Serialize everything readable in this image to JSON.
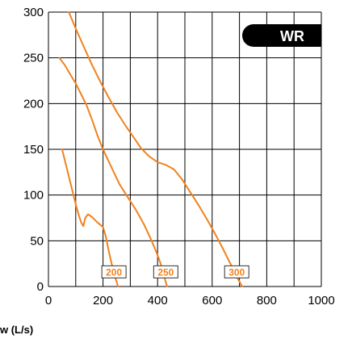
{
  "chart_data": {
    "type": "line",
    "xlabel": "w (L/s)",
    "ylabel": "",
    "xlim": [
      0,
      1000
    ],
    "ylim": [
      0,
      300
    ],
    "x_ticks": [
      "0",
      "200",
      "400",
      "600",
      "800",
      "1000"
    ],
    "y_ticks": [
      "0",
      "50",
      "100",
      "150",
      "200",
      "250",
      "300"
    ],
    "grid": true,
    "badge": "WR",
    "colors": {
      "curve": "#f0821e",
      "grid": "#000000",
      "badge": "#000000",
      "badge_text": "#ffffff"
    },
    "series": [
      {
        "name": "200",
        "points": [
          [
            50,
            150
          ],
          [
            60,
            138
          ],
          [
            70,
            126
          ],
          [
            80,
            114
          ],
          [
            90,
            102
          ],
          [
            100,
            90
          ],
          [
            110,
            79
          ],
          [
            120,
            70
          ],
          [
            128,
            66
          ],
          [
            135,
            75
          ],
          [
            145,
            79
          ],
          [
            160,
            76
          ],
          [
            180,
            70
          ],
          [
            200,
            65
          ],
          [
            210,
            55
          ],
          [
            220,
            40
          ],
          [
            230,
            27
          ],
          [
            240,
            15
          ],
          [
            250,
            5
          ],
          [
            255,
            0
          ]
        ]
      },
      {
        "name": "250",
        "points": [
          [
            40,
            250
          ],
          [
            60,
            242
          ],
          [
            80,
            232
          ],
          [
            100,
            222
          ],
          [
            120,
            210
          ],
          [
            140,
            198
          ],
          [
            160,
            182
          ],
          [
            180,
            165
          ],
          [
            200,
            150
          ],
          [
            230,
            131
          ],
          [
            260,
            112
          ],
          [
            290,
            98
          ],
          [
            320,
            84
          ],
          [
            350,
            68
          ],
          [
            375,
            52
          ],
          [
            395,
            38
          ],
          [
            410,
            26
          ],
          [
            420,
            15
          ],
          [
            430,
            5
          ],
          [
            435,
            0
          ]
        ]
      },
      {
        "name": "300",
        "points": [
          [
            75,
            300
          ],
          [
            100,
            282
          ],
          [
            130,
            262
          ],
          [
            160,
            242
          ],
          [
            190,
            224
          ],
          [
            220,
            207
          ],
          [
            250,
            191
          ],
          [
            280,
            177
          ],
          [
            310,
            164
          ],
          [
            340,
            151
          ],
          [
            370,
            142
          ],
          [
            400,
            136
          ],
          [
            430,
            133
          ],
          [
            460,
            128
          ],
          [
            490,
            117
          ],
          [
            520,
            103
          ],
          [
            550,
            89
          ],
          [
            580,
            74
          ],
          [
            610,
            58
          ],
          [
            640,
            41
          ],
          [
            670,
            23
          ],
          [
            695,
            8
          ],
          [
            710,
            0
          ]
        ]
      }
    ],
    "labels": [
      {
        "text": "200",
        "x": 240,
        "y": 16
      },
      {
        "text": "250",
        "x": 430,
        "y": 16
      },
      {
        "text": "300",
        "x": 690,
        "y": 16
      }
    ]
  }
}
